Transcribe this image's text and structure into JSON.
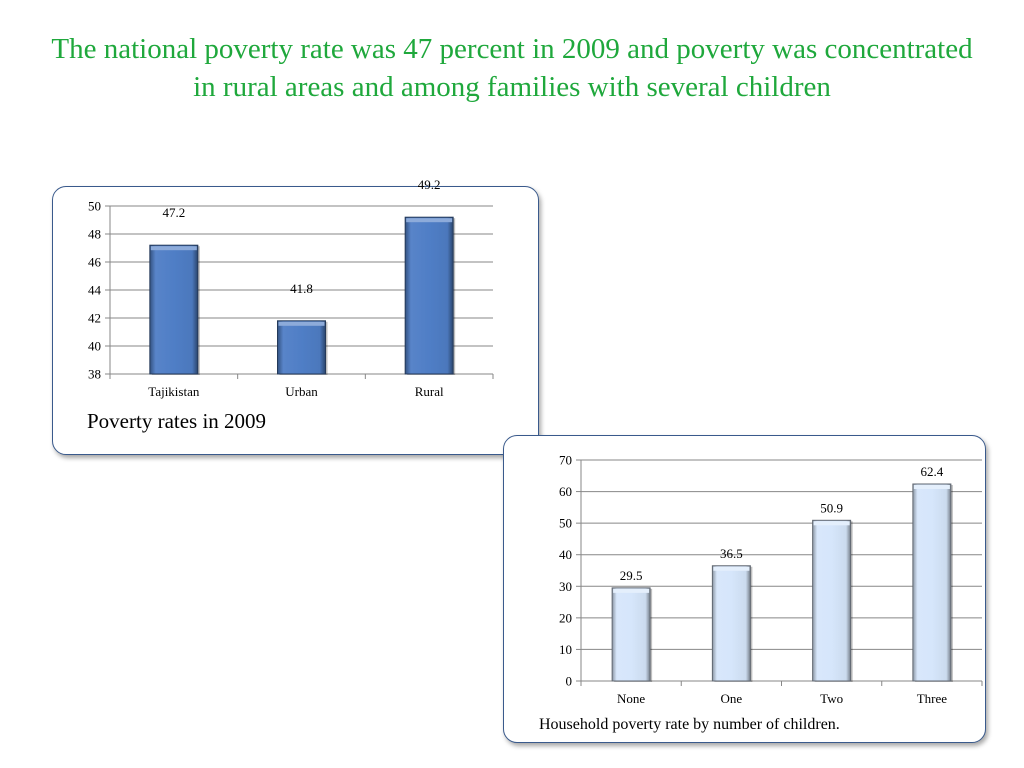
{
  "slide": {
    "title": "The national poverty rate was 47 percent in 2009 and poverty was concentrated in rural areas and among families with several children"
  },
  "colors": {
    "title": "#1fa83c",
    "bar_dark_blue": "#4f7ec6",
    "bar_light_blue": "#d6e6fb",
    "panel_border": "#3a5a8c",
    "gridline": "#878787"
  },
  "chart_data": [
    {
      "type": "bar",
      "title": "",
      "caption": "Poverty rates in 2009",
      "categories": [
        "Tajikistan",
        "Urban",
        "Rural"
      ],
      "values": [
        47.2,
        41.8,
        49.2
      ],
      "data_labels": [
        "47.2",
        "41.8",
        "49.2"
      ],
      "ylim": [
        38,
        50
      ],
      "yticks": [
        38,
        40,
        42,
        44,
        46,
        48,
        50
      ],
      "grid": true,
      "legend": "none",
      "bar_color": "#4f7ec6"
    },
    {
      "type": "bar",
      "title": "",
      "caption": "Household poverty rate by number of children.",
      "categories": [
        "None",
        "One",
        "Two",
        "Three"
      ],
      "values": [
        29.5,
        36.5,
        50.9,
        62.4
      ],
      "data_labels": [
        "29.5",
        "36.5",
        "50.9",
        "62.4"
      ],
      "ylim": [
        0,
        70
      ],
      "yticks": [
        0,
        10,
        20,
        30,
        40,
        50,
        60,
        70
      ],
      "grid": true,
      "legend": "none",
      "bar_color": "#d6e6fb"
    }
  ]
}
